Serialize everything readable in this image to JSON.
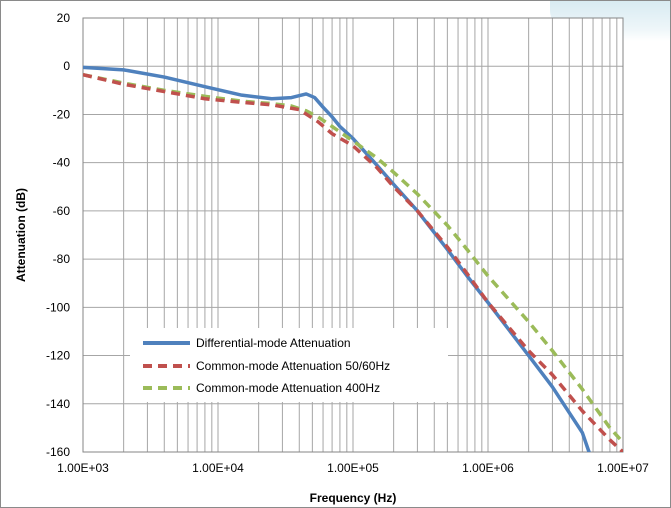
{
  "chart_data": {
    "type": "line",
    "title": "",
    "xlabel": "Frequency (Hz)",
    "ylabel": "Attenuation (dB)",
    "x_scale": "log",
    "xlim": [
      1000,
      10000000
    ],
    "ylim": [
      -160,
      20
    ],
    "x_tick_labels": [
      "1.00E+03",
      "1.00E+04",
      "1.00E+05",
      "1.00E+06",
      "1.00E+07"
    ],
    "x_tick_values": [
      1000,
      10000,
      100000,
      1000000,
      10000000
    ],
    "y_ticks": [
      20,
      0,
      -20,
      -40,
      -60,
      -80,
      -100,
      -120,
      -140,
      -160
    ],
    "grid": true,
    "legend_position": "bottom-left",
    "series": [
      {
        "name": "Differential-mode Attenuation",
        "color": "#4f81bd",
        "style": "solid",
        "x": [
          1000,
          2000,
          4000,
          8000,
          15000,
          25000,
          35000,
          45000,
          52000,
          60000,
          70000,
          80000,
          100000,
          150000,
          200000,
          300000,
          500000,
          700000,
          1000000,
          2000000,
          3000000,
          5000000,
          5600000
        ],
        "y": [
          -0.5,
          -1.5,
          -4.5,
          -8.5,
          -12,
          -13.5,
          -13,
          -11.5,
          -13,
          -17,
          -21,
          -25,
          -30,
          -41,
          -49,
          -60,
          -76,
          -87,
          -98,
          -120,
          -133,
          -152,
          -160
        ]
      },
      {
        "name": "Common-mode Attenuation 50/60Hz",
        "color": "#c0504d",
        "style": "dashed",
        "x": [
          1000,
          2000,
          4000,
          8000,
          15000,
          25000,
          40000,
          55000,
          70000,
          100000,
          150000,
          200000,
          300000,
          500000,
          700000,
          1000000,
          2000000,
          3000000,
          5000000,
          8000000,
          10000000
        ],
        "y": [
          -3.5,
          -7.5,
          -10.5,
          -13.5,
          -15,
          -16,
          -18,
          -23,
          -28,
          -33,
          -42,
          -50,
          -60,
          -75,
          -86,
          -98,
          -118,
          -128,
          -143,
          -155,
          -160
        ]
      },
      {
        "name": "Common-mode Attenuation 400Hz",
        "color": "#9bbb59",
        "style": "dashed",
        "x": [
          1000,
          2000,
          4000,
          8000,
          15000,
          25000,
          35000,
          45000,
          55000,
          70000,
          100000,
          150000,
          200000,
          300000,
          500000,
          700000,
          1000000,
          2000000,
          3000000,
          5000000,
          8000000,
          10000000
        ],
        "y": [
          -3.5,
          -7,
          -10,
          -12.5,
          -14.5,
          -15.5,
          -16.5,
          -18.5,
          -21,
          -25,
          -31,
          -38,
          -44,
          -53,
          -66,
          -76,
          -87,
          -106,
          -118,
          -134,
          -150,
          -156
        ]
      }
    ]
  }
}
